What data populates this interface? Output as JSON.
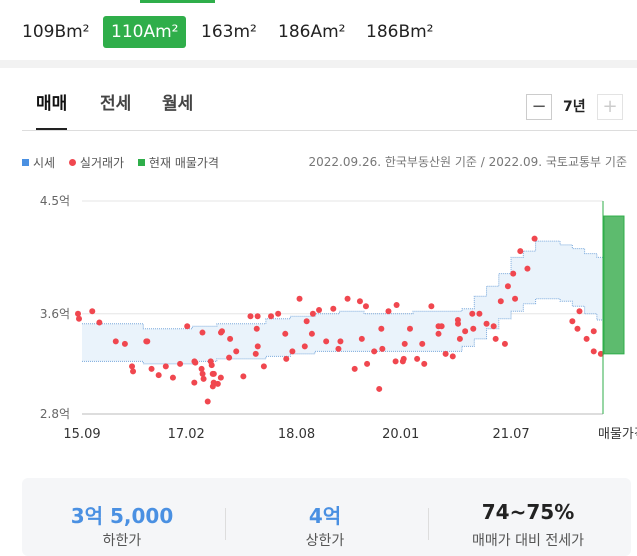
{
  "area_tabs": [
    {
      "label": "109Bm²",
      "active": false
    },
    {
      "label": "110Am²",
      "active": true
    },
    {
      "label": "163m²",
      "active": false
    },
    {
      "label": "186Am²",
      "active": false
    },
    {
      "label": "186Bm²",
      "active": false
    }
  ],
  "sub_tabs": [
    {
      "label": "매매",
      "active": true
    },
    {
      "label": "전세",
      "active": false
    },
    {
      "label": "월세",
      "active": false
    }
  ],
  "period": {
    "minus": "−",
    "label": "7년",
    "plus": "+"
  },
  "legend": {
    "market": "시세",
    "actual": "실거래가",
    "listing": "현재 매물가격"
  },
  "basis_text": "2022.09.26. 한국부동산원 기준 / 2022.09. 국토교통부 기준",
  "colors": {
    "accent": "#2fae4a",
    "market": "#4a90e2",
    "actual": "#f0474f",
    "listing": "#2fae4a",
    "band_fill": "#eaf3fb",
    "band_line": "#7aa9dc",
    "price_blue": "#4a90e2"
  },
  "chart_data": {
    "type": "scatter",
    "x_ticks": [
      "15.09",
      "17.02",
      "18.08",
      "20.01",
      "21.07",
      "매물가격"
    ],
    "y_ticks": [
      "4.5억",
      "3.6억",
      "2.8억"
    ],
    "y_tick_values": [
      4.5,
      3.6,
      2.8
    ],
    "x_range": [
      "2015-09",
      "2022-12"
    ],
    "ylim": [
      2.8,
      4.5
    ],
    "market_band": {
      "x": [
        "2015-09",
        "2016-03",
        "2016-07",
        "2016-11",
        "2017-03",
        "2017-07",
        "2017-11",
        "2018-03",
        "2018-07",
        "2018-11",
        "2019-03",
        "2019-07",
        "2019-11",
        "2020-03",
        "2020-07",
        "2020-11",
        "2021-01",
        "2021-03",
        "2021-05",
        "2021-07",
        "2021-09",
        "2021-11",
        "2022-01",
        "2022-03",
        "2022-05",
        "2022-07",
        "2022-09"
      ],
      "upper": [
        3.52,
        3.52,
        3.48,
        3.48,
        3.5,
        3.52,
        3.52,
        3.56,
        3.58,
        3.6,
        3.62,
        3.6,
        3.6,
        3.62,
        3.62,
        3.64,
        3.74,
        3.82,
        3.92,
        4.05,
        4.1,
        4.18,
        4.18,
        4.15,
        4.12,
        4.08,
        4.05
      ],
      "lower": [
        3.22,
        3.22,
        3.2,
        3.2,
        3.22,
        3.24,
        3.24,
        3.26,
        3.28,
        3.3,
        3.3,
        3.3,
        3.3,
        3.3,
        3.3,
        3.34,
        3.4,
        3.48,
        3.56,
        3.62,
        3.68,
        3.72,
        3.72,
        3.7,
        3.66,
        3.6,
        3.55
      ]
    },
    "actual_trades": {
      "x": [
        "2015-09",
        "2015-09",
        "2015-11",
        "2015-12",
        "2016-04",
        "2016-05",
        "2016-05",
        "2016-07",
        "2016-07",
        "2016-09",
        "2016-10",
        "2016-11",
        "2016-12",
        "2017-01",
        "2017-02",
        "2017-03",
        "2017-03",
        "2017-04",
        "2017-04",
        "2017-05",
        "2017-05",
        "2017-05",
        "2017-06",
        "2017-06",
        "2017-06",
        "2017-06",
        "2017-07",
        "2017-07",
        "2017-07",
        "2017-08",
        "2017-08",
        "2017-09",
        "2017-10",
        "2017-11",
        "2017-12",
        "2018-01",
        "2018-02",
        "2018-02",
        "2018-03",
        "2018-04",
        "2018-05",
        "2018-06",
        "2018-07",
        "2018-08",
        "2018-09",
        "2018-10",
        "2018-11",
        "2018-12",
        "2019-01",
        "2019-02",
        "2019-03",
        "2019-04",
        "2019-05",
        "2019-06",
        "2019-07",
        "2019-08",
        "2019-09",
        "2019-10",
        "2019-11",
        "2019-12",
        "2019-12",
        "2020-01",
        "2020-01",
        "2020-02",
        "2020-03",
        "2020-04",
        "2020-05",
        "2020-06",
        "2020-07",
        "2020-08",
        "2020-09",
        "2020-10",
        "2020-11",
        "2020-12",
        "2021-01",
        "2021-02",
        "2021-03",
        "2021-04",
        "2021-05",
        "2021-06",
        "2021-07",
        "2021-08",
        "2021-09",
        "2021-10",
        "2021-11",
        "2022-05",
        "2022-06",
        "2022-07",
        "2022-08",
        "2022-09"
      ],
      "y": [
        3.6,
        3.56,
        3.62,
        3.53,
        3.36,
        3.18,
        3.14,
        3.38,
        3.38,
        3.16,
        3.11,
        3.18,
        3.09,
        3.2,
        3.5,
        3.05,
        3.21,
        3.45,
        3.22,
        3.16,
        3.12,
        3.08,
        3.22,
        3.19,
        3.12,
        3.05,
        3.09,
        3.02,
        3.12,
        3.45,
        3.46,
        3.25,
        3.3,
        3.1,
        3.58,
        3.58,
        3.28,
        3.48,
        3.18,
        3.58,
        3.6,
        3.44,
        3.3,
        3.72,
        3.54,
        3.34,
        3.44,
        3.63,
        3.38,
        3.64,
        3.38,
        3.72,
        3.16,
        3.4,
        3.7,
        3.2,
        3.3,
        3.48,
        3.62,
        3.22,
        3.67,
        3.24,
        3.36,
        3.22,
        3.48,
        3.24,
        3.2,
        3.66,
        3.5,
        3.28,
        3.26,
        3.4,
        3.52,
        3.46,
        3.6,
        3.6,
        3.52,
        3.5,
        3.7,
        3.82,
        3.72,
        3.92,
        4.1,
        3.96,
        4.2,
        3.54,
        3.62,
        3.4,
        3.46,
        3.28
      ],
      "extra_points": [
        {
          "x": "2017-06",
          "y": 2.9
        },
        {
          "x": "2017-07",
          "y": 3.04
        },
        {
          "x": "2018-02",
          "y": 3.34
        },
        {
          "x": "2018-06",
          "y": 3.24
        },
        {
          "x": "2019-03",
          "y": 3.32
        },
        {
          "x": "2019-09",
          "y": 3.0
        },
        {
          "x": "2019-10",
          "y": 3.32
        },
        {
          "x": "2020-05",
          "y": 3.36
        },
        {
          "x": "2020-07",
          "y": 3.44
        },
        {
          "x": "2020-08",
          "y": 3.5
        },
        {
          "x": "2020-10",
          "y": 3.55
        },
        {
          "x": "2021-01",
          "y": 3.48
        },
        {
          "x": "2021-04",
          "y": 3.4
        },
        {
          "x": "2021-06",
          "y": 3.36
        },
        {
          "x": "2016-03",
          "y": 3.38
        },
        {
          "x": "2017-09",
          "y": 3.4
        },
        {
          "x": "2018-11",
          "y": 3.6
        },
        {
          "x": "2019-07",
          "y": 3.66
        },
        {
          "x": "2022-06",
          "y": 3.48
        },
        {
          "x": "2022-08",
          "y": 3.3
        }
      ]
    },
    "current_listing": {
      "low": 3.28,
      "high": 4.38
    }
  },
  "summary": [
    {
      "value": "3억 5,000",
      "label": "하한가",
      "color": "#4a90e2"
    },
    {
      "value": "4억",
      "label": "상한가",
      "color": "#4a90e2"
    },
    {
      "value": "74~75%",
      "label": "매매가 대비 전세가",
      "color": "#222"
    }
  ]
}
